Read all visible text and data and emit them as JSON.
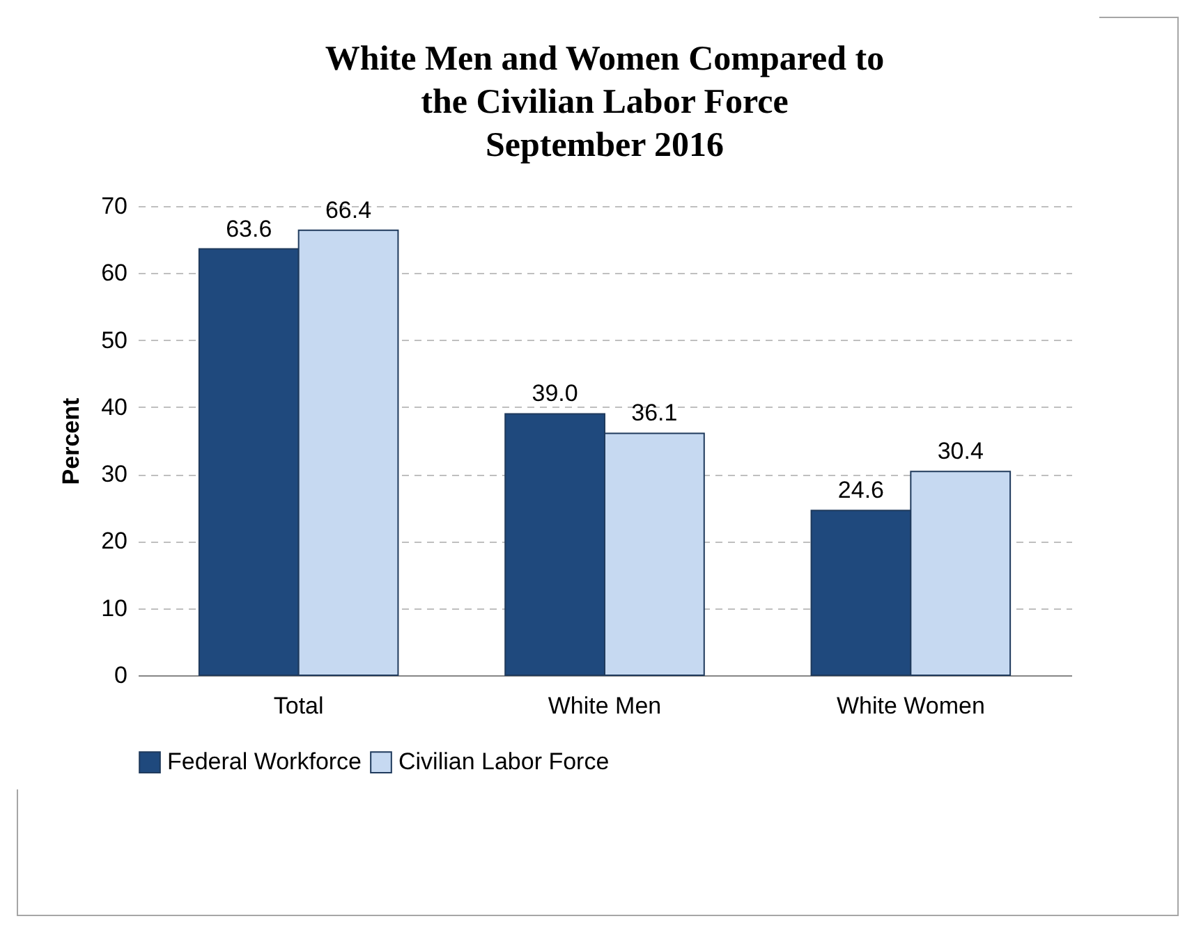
{
  "chart_data": {
    "type": "bar",
    "title": "White Men and Women Compared to\nthe Civilian Labor Force\nSeptember 2016",
    "ylabel": "Percent",
    "categories": [
      "Total",
      "White Men",
      "White Women"
    ],
    "series": [
      {
        "name": "Federal Workforce",
        "color": "#1f497d",
        "values": [
          63.6,
          39.0,
          24.6
        ]
      },
      {
        "name": "Civilian Labor Force",
        "color": "#c6d9f1",
        "values": [
          66.4,
          36.1,
          30.4
        ]
      }
    ],
    "value_labels": [
      [
        "63.6",
        "39.0",
        "24.6"
      ],
      [
        "66.4",
        "36.1",
        "30.4"
      ]
    ],
    "ylim": [
      0,
      70
    ],
    "yticks": [
      0,
      10,
      20,
      30,
      40,
      50,
      60,
      70
    ],
    "grid": "y",
    "legend": "bottom"
  }
}
